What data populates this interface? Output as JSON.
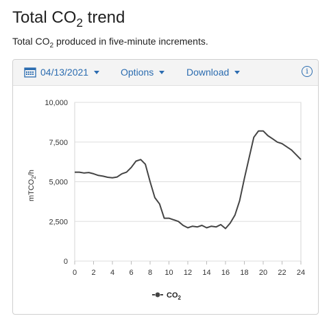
{
  "header": {
    "title_main": "Total CO",
    "title_sub": "2",
    "title_rest": " trend",
    "subtitle_main": "Total CO",
    "subtitle_sub": "2",
    "subtitle_rest": " produced in five-minute increments."
  },
  "toolbar": {
    "date_label": "04/13/2021",
    "options_label": "Options",
    "download_label": "Download",
    "date_icon": "calendar-icon",
    "info_icon": "info-icon",
    "info_glyph": "i"
  },
  "colors": {
    "accent": "#2b6cb0",
    "series": "#444444",
    "grid": "#dddddd"
  },
  "chart_data": {
    "type": "line",
    "ylabel_main": "mTCO",
    "ylabel_sub": "2",
    "ylabel_rest": "/h",
    "xlim": [
      0,
      24
    ],
    "ylim": [
      0,
      10000
    ],
    "x_ticks": [
      0,
      2,
      4,
      6,
      8,
      10,
      12,
      14,
      16,
      18,
      20,
      22,
      24
    ],
    "x_tick_labels": [
      "0",
      "2",
      "4",
      "6",
      "8",
      "10",
      "12",
      "14",
      "16",
      "18",
      "20",
      "22",
      "24"
    ],
    "y_ticks": [
      0,
      2500,
      5000,
      7500,
      10000
    ],
    "y_tick_labels": [
      "0",
      "2,500",
      "5,000",
      "7,500",
      "10,000"
    ],
    "grid": true,
    "legend": {
      "position": "bottom-center",
      "label_main": "CO",
      "label_sub": "2"
    },
    "series": [
      {
        "name": "CO2",
        "x": [
          0,
          0.5,
          1,
          1.5,
          2,
          2.5,
          3,
          3.5,
          4,
          4.5,
          5,
          5.5,
          6,
          6.5,
          7,
          7.5,
          8,
          8.5,
          9,
          9.5,
          10,
          10.5,
          11,
          11.5,
          12,
          12.5,
          13,
          13.5,
          14,
          14.5,
          15,
          15.5,
          16,
          16.5,
          17,
          17.5,
          18,
          18.5,
          19,
          19.5,
          20,
          20.5,
          21,
          21.5,
          22,
          22.5,
          23,
          23.5,
          24
        ],
        "y": [
          5600,
          5600,
          5550,
          5580,
          5500,
          5400,
          5350,
          5280,
          5250,
          5300,
          5500,
          5600,
          5900,
          6300,
          6400,
          6100,
          5000,
          4000,
          3600,
          2700,
          2700,
          2600,
          2500,
          2250,
          2100,
          2200,
          2150,
          2250,
          2100,
          2200,
          2150,
          2300,
          2050,
          2400,
          2900,
          3800,
          5200,
          6500,
          7800,
          8200,
          8200,
          7900,
          7700,
          7500,
          7400,
          7200,
          7000,
          6700,
          6400
        ]
      }
    ]
  }
}
